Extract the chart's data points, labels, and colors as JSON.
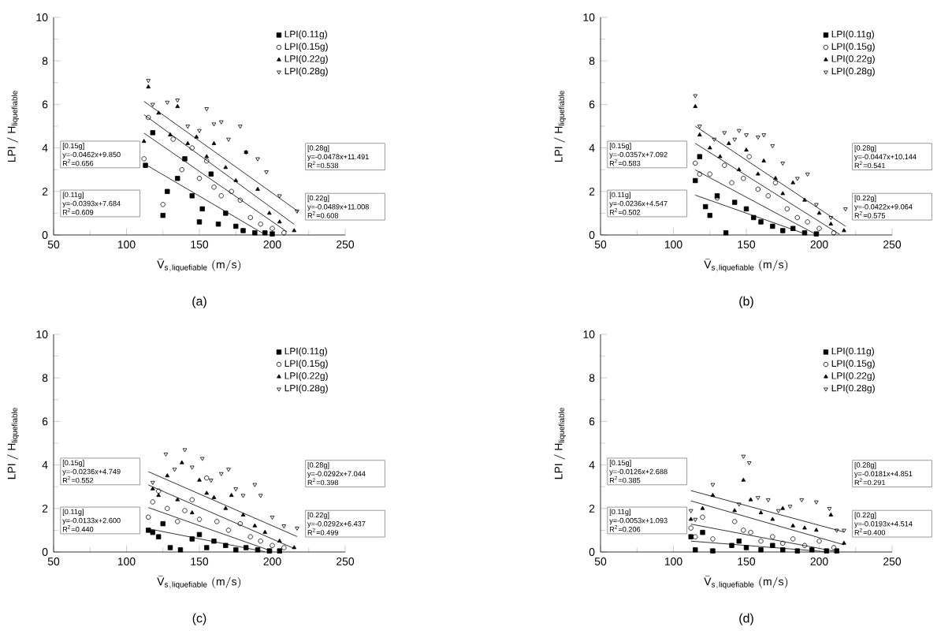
{
  "chart_data": [
    {
      "type": "scatter",
      "title": "(a)",
      "xlabel": "\\bar{\\mathrm{V}}_{\\mathrm{s,liquefiable}}\\ \\mathrm{(m/s)}",
      "ylabel": "\\mathrm{LPI}\\ /\\ \\mathrm{H}_{\\mathrm{liquefiable}}",
      "xlim": [
        50,
        250
      ],
      "ylim": [
        0,
        10
      ],
      "xticks": [
        50,
        100,
        150,
        200,
        250
      ],
      "yticks": [
        0,
        2,
        4,
        6,
        8,
        10
      ],
      "legend": "top right",
      "annotations": [
        "[0.15g]",
        "y=-0.0462x+9.850",
        "R$^{2}$=0.656",
        "[0.11g]",
        "y=-0.0393x+7.684",
        "R$^{2}$=0.609",
        "[0.28g]",
        "y=-0.0478x+11.491",
        "R$^{2}$=0.538",
        "[0.22g]",
        "y=-0.0489x+11.008",
        "R$^{2}$=0.608"
      ],
      "series": [
        {
          "name": "LPI(0.11g)",
          "color": "#000000",
          "marker": "square",
          "x": [
            113,
            118,
            125,
            128,
            135,
            140,
            145,
            150,
            152,
            158,
            163,
            168,
            175,
            180,
            188,
            195,
            200
          ],
          "values": [
            3.2,
            4.7,
            0.9,
            2.0,
            2.6,
            3.5,
            1.8,
            0.6,
            1.2,
            2.8,
            0.5,
            1.0,
            0.4,
            0.2,
            0.1,
            0.1,
            0.05
          ]
        },
        {
          "name": "LPI(0.15g)",
          "color": "#000000",
          "marker": "circle",
          "x": [
            112,
            115,
            125,
            132,
            138,
            145,
            150,
            155,
            160,
            165,
            172,
            178,
            185,
            192,
            200,
            208
          ],
          "values": [
            3.5,
            5.4,
            1.4,
            4.4,
            3.0,
            4.0,
            2.6,
            3.4,
            2.2,
            1.8,
            2.0,
            1.6,
            0.8,
            0.5,
            0.3,
            0.1
          ]
        },
        {
          "name": "LPI(0.22g)",
          "color": "#000000",
          "marker": "triangle",
          "x": [
            112,
            115,
            122,
            130,
            135,
            142,
            148,
            155,
            160,
            168,
            175,
            182,
            190,
            198,
            205,
            215
          ],
          "values": [
            4.3,
            6.8,
            5.6,
            4.6,
            5.9,
            4.2,
            4.5,
            3.6,
            4.2,
            3.1,
            2.5,
            3.8,
            2.1,
            1.0,
            0.6,
            0.2
          ]
        },
        {
          "name": "LPI(0.28g)",
          "color": "#000000",
          "marker": "triangle-down",
          "x": [
            115,
            118,
            128,
            135,
            142,
            150,
            155,
            160,
            165,
            170,
            178,
            182,
            190,
            196,
            205,
            217
          ],
          "values": [
            7.1,
            6.0,
            6.1,
            6.2,
            5.0,
            4.8,
            5.8,
            5.1,
            5.2,
            4.4,
            5.0,
            3.8,
            3.5,
            2.9,
            1.8,
            1.1
          ]
        },
        {
          "type": "line",
          "color": "#333333",
          "line_style": "solid",
          "x": [
            112,
            195
          ],
          "values": [
            3.28,
            0.02
          ]
        },
        {
          "type": "line",
          "color": "#333333",
          "line_style": "solid",
          "x": [
            112,
            210
          ],
          "values": [
            4.68,
            0.15
          ]
        },
        {
          "type": "line",
          "color": "#333333",
          "line_style": "solid",
          "x": [
            112,
            215
          ],
          "values": [
            5.53,
            0.49
          ]
        },
        {
          "type": "line",
          "color": "#333333",
          "line_style": "solid",
          "x": [
            112,
            218
          ],
          "values": [
            6.14,
            1.07
          ]
        }
      ]
    },
    {
      "type": "scatter",
      "title": "(b)",
      "xlabel": "\\bar{\\mathrm{V}}_{\\mathrm{s,liquefiable}}\\ \\mathrm{(m/s)}",
      "ylabel": "\\mathrm{LPI}\\ /\\ \\mathrm{H}_{\\mathrm{liquefiable}}",
      "xlim": [
        50,
        250
      ],
      "ylim": [
        0,
        10
      ],
      "xticks": [
        50,
        100,
        150,
        200,
        250
      ],
      "yticks": [
        0,
        2,
        4,
        6,
        8,
        10
      ],
      "legend": "top right",
      "annotations": [
        "[0.15g]",
        "y=-0.0357x+7.092",
        "R$^{2}$=0.583",
        "[0.11g]",
        "y=-0.0236x+4.547",
        "R$^{2}$=0.502",
        "[0.28g]",
        "y=-0.0447x+10.144",
        "R$^{2}$=0.541",
        "[0.22g]",
        "y=-0.0422x+9.064",
        "R$^{2}$=0.575"
      ],
      "series": [
        {
          "name": "LPI(0.11g)",
          "color": "#000000",
          "marker": "square",
          "x": [
            115,
            118,
            122,
            125,
            130,
            136,
            142,
            150,
            155,
            160,
            168,
            175,
            182,
            190,
            198
          ],
          "values": [
            2.5,
            3.6,
            1.3,
            0.9,
            1.8,
            0.1,
            1.5,
            1.2,
            0.8,
            0.6,
            0.4,
            0.2,
            0.3,
            0.1,
            0.05
          ]
        },
        {
          "name": "LPI(0.15g)",
          "color": "#000000",
          "marker": "circle",
          "x": [
            115,
            118,
            125,
            130,
            135,
            140,
            148,
            152,
            158,
            165,
            170,
            178,
            185,
            192,
            200,
            210
          ],
          "values": [
            3.3,
            2.8,
            2.8,
            1.7,
            3.2,
            2.4,
            2.6,
            3.6,
            2.1,
            1.8,
            2.4,
            1.2,
            0.8,
            0.6,
            0.3,
            0.1
          ]
        },
        {
          "name": "LPI(0.22g)",
          "color": "#000000",
          "marker": "triangle",
          "x": [
            115,
            118,
            125,
            132,
            138,
            145,
            150,
            158,
            162,
            170,
            175,
            182,
            190,
            200,
            208,
            217
          ],
          "values": [
            5.9,
            4.6,
            4.0,
            3.6,
            4.2,
            3.0,
            3.9,
            2.8,
            3.4,
            2.6,
            1.9,
            2.4,
            1.6,
            1.0,
            0.5,
            0.2
          ]
        },
        {
          "name": "LPI(0.28g)",
          "color": "#000000",
          "marker": "triangle-down",
          "x": [
            115,
            118,
            128,
            135,
            142,
            145,
            150,
            158,
            162,
            168,
            175,
            185,
            192,
            198,
            208,
            218
          ],
          "values": [
            6.4,
            5.0,
            4.4,
            4.7,
            4.4,
            4.8,
            4.6,
            4.5,
            4.6,
            4.1,
            3.3,
            2.6,
            2.8,
            1.4,
            0.8,
            1.2
          ]
        },
        {
          "type": "line",
          "color": "#333333",
          "line_style": "solid",
          "x": [
            115,
            190
          ],
          "values": [
            1.83,
            0.06
          ]
        },
        {
          "type": "line",
          "color": "#333333",
          "line_style": "solid",
          "x": [
            115,
            198
          ],
          "values": [
            2.99,
            0.02
          ]
        },
        {
          "type": "line",
          "color": "#333333",
          "line_style": "solid",
          "x": [
            115,
            214
          ],
          "values": [
            4.21,
            0.03
          ]
        },
        {
          "type": "line",
          "color": "#333333",
          "line_style": "solid",
          "x": [
            115,
            218
          ],
          "values": [
            5.0,
            0.4
          ]
        }
      ]
    },
    {
      "type": "scatter",
      "title": "(c)",
      "xlabel": "\\bar{\\mathrm{V}}_{\\mathrm{s,liquefiable}}\\ \\mathrm{(m/s)}",
      "ylabel": "\\mathrm{LPI}\\ /\\ \\mathrm{H}_{\\mathrm{liquefiable}}",
      "xlim": [
        50,
        250
      ],
      "ylim": [
        0,
        10
      ],
      "xticks": [
        50,
        100,
        150,
        200,
        250
      ],
      "yticks": [
        0,
        2,
        4,
        6,
        8,
        10
      ],
      "legend": "top right",
      "annotations": [
        "[0.15g]",
        "y=-0.0236x+4.749",
        "R$^{2}$=0.552",
        "[0.11g]",
        "y=-0.0133x+2.600",
        "R$^{2}$=0.440",
        "[0.28g]",
        "y=-0.0292x+7.044",
        "R$^{2}$=0.398",
        "[0.22g]",
        "y=-0.0292x+6.437",
        "R$^{2}$=0.499"
      ],
      "series": [
        {
          "name": "LPI(0.11g)",
          "color": "#000000",
          "marker": "square",
          "x": [
            115,
            118,
            122,
            125,
            130,
            137,
            145,
            150,
            155,
            160,
            168,
            175,
            182,
            190,
            198,
            205
          ],
          "values": [
            1.0,
            0.9,
            0.7,
            1.3,
            0.2,
            0.1,
            0.6,
            0.8,
            0.2,
            0.5,
            0.3,
            0.1,
            0.2,
            0.1,
            0.05,
            0.05
          ]
        },
        {
          "name": "LPI(0.15g)",
          "color": "#000000",
          "marker": "circle",
          "x": [
            115,
            118,
            122,
            128,
            135,
            140,
            145,
            150,
            155,
            162,
            170,
            178,
            185,
            192,
            200,
            208
          ],
          "values": [
            1.6,
            2.3,
            2.8,
            2.0,
            1.4,
            1.9,
            2.4,
            1.5,
            3.4,
            1.4,
            1.0,
            1.3,
            0.7,
            0.5,
            0.3,
            0.2
          ]
        },
        {
          "name": "LPI(0.22g)",
          "color": "#000000",
          "marker": "triangle",
          "x": [
            118,
            122,
            128,
            135,
            138,
            145,
            150,
            155,
            160,
            168,
            172,
            180,
            188,
            195,
            205,
            215
          ],
          "values": [
            2.9,
            2.6,
            3.5,
            2.4,
            4.1,
            1.8,
            3.3,
            2.7,
            2.5,
            2.0,
            2.6,
            1.7,
            1.2,
            0.9,
            0.5,
            0.2
          ]
        },
        {
          "name": "LPI(0.28g)",
          "color": "#000000",
          "marker": "triangle-down",
          "x": [
            118,
            127,
            133,
            140,
            145,
            152,
            158,
            165,
            170,
            175,
            180,
            188,
            192,
            200,
            208,
            217
          ],
          "values": [
            3.2,
            4.5,
            3.8,
            4.7,
            3.9,
            4.3,
            3.3,
            3.6,
            3.8,
            2.9,
            2.6,
            3.1,
            2.6,
            1.6,
            1.2,
            1.1
          ]
        },
        {
          "type": "line",
          "color": "#333333",
          "line_style": "solid",
          "x": [
            115,
            195
          ],
          "values": [
            1.07,
            0.01
          ]
        },
        {
          "type": "line",
          "color": "#333333",
          "line_style": "solid",
          "x": [
            115,
            200
          ],
          "values": [
            2.04,
            0.03
          ]
        },
        {
          "type": "line",
          "color": "#333333",
          "line_style": "solid",
          "x": [
            115,
            215
          ],
          "values": [
            3.08,
            0.16
          ]
        },
        {
          "type": "line",
          "color": "#333333",
          "line_style": "solid",
          "x": [
            115,
            217
          ],
          "values": [
            3.69,
            0.71
          ]
        }
      ]
    },
    {
      "type": "scatter",
      "title": "(d)",
      "xlabel": "\\bar{\\mathrm{V}}_{\\mathrm{s,liquefiable}}\\ \\mathrm{(m/s)}",
      "ylabel": "\\mathrm{LPI}\\ /\\ \\mathrm{H}_{\\mathrm{liquefiable}}",
      "xlim": [
        50,
        250
      ],
      "ylim": [
        0,
        10
      ],
      "xticks": [
        50,
        100,
        150,
        200,
        250
      ],
      "yticks": [
        0,
        2,
        4,
        6,
        8,
        10
      ],
      "legend": "top right",
      "annotations": [
        "[0.15g]",
        "y=-0.0126x+2.688",
        "R$^{2}$=0.385",
        "[0.11g]",
        "y=-0.0053x+1.093",
        "R$^{2}$=0.206",
        "[0.28g]",
        "y=-0.0181x+4.851",
        "R$^{2}$=0.291",
        "[0.22g]",
        "y=-0.0193x+4.514",
        "R$^{2}$=0.400"
      ],
      "series": [
        {
          "name": "LPI(0.11g)",
          "color": "#000000",
          "marker": "square",
          "x": [
            112,
            115,
            120,
            127,
            140,
            145,
            150,
            160,
            168,
            175,
            185,
            195,
            205,
            212
          ],
          "values": [
            0.7,
            0.1,
            0.9,
            0.05,
            0.3,
            0.5,
            0.2,
            0.1,
            0.3,
            0.1,
            0.05,
            0.1,
            0.05,
            0.05
          ]
        },
        {
          "name": "LPI(0.15g)",
          "color": "#000000",
          "marker": "circle",
          "x": [
            112,
            115,
            120,
            127,
            142,
            148,
            153,
            160,
            168,
            175,
            182,
            190,
            200,
            210
          ],
          "values": [
            1.1,
            0.7,
            1.6,
            0.6,
            1.4,
            1.0,
            0.9,
            0.5,
            0.7,
            0.4,
            0.6,
            0.3,
            0.5,
            0.2
          ]
        },
        {
          "name": "LPI(0.22g)",
          "color": "#000000",
          "marker": "triangle",
          "x": [
            112,
            120,
            127,
            142,
            148,
            153,
            160,
            168,
            175,
            182,
            190,
            198,
            208,
            217
          ],
          "values": [
            1.5,
            2.0,
            2.6,
            1.9,
            3.3,
            2.4,
            1.8,
            1.5,
            2.0,
            1.2,
            1.1,
            1.0,
            1.7,
            0.4
          ]
        },
        {
          "name": "LPI(0.28g)",
          "color": "#000000",
          "marker": "triangle-down",
          "x": [
            112,
            115,
            127,
            145,
            148,
            152,
            158,
            165,
            172,
            180,
            188,
            198,
            207,
            212,
            217
          ],
          "values": [
            1.9,
            1.5,
            3.1,
            2.2,
            4.4,
            4.1,
            2.5,
            2.4,
            1.9,
            2.1,
            2.4,
            2.3,
            2.0,
            1.0,
            1.0
          ]
        },
        {
          "type": "line",
          "color": "#333333",
          "line_style": "solid",
          "x": [
            112,
            205
          ],
          "values": [
            0.5,
            0.01
          ]
        },
        {
          "type": "line",
          "color": "#333333",
          "line_style": "solid",
          "x": [
            112,
            210
          ],
          "values": [
            1.28,
            0.04
          ]
        },
        {
          "type": "line",
          "color": "#333333",
          "line_style": "solid",
          "x": [
            112,
            217
          ],
          "values": [
            2.35,
            0.33
          ]
        },
        {
          "type": "line",
          "color": "#333333",
          "line_style": "solid",
          "x": [
            112,
            217
          ],
          "values": [
            2.82,
            0.92
          ]
        }
      ]
    }
  ]
}
